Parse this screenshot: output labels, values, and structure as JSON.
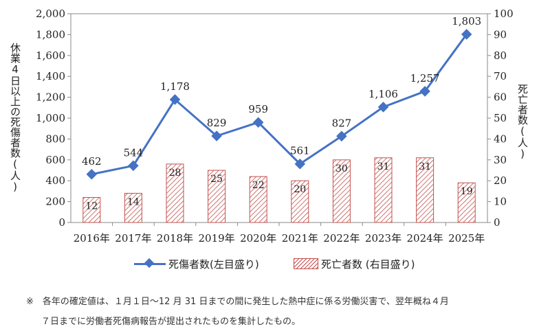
{
  "chart_data": {
    "type": "bar+line",
    "categories": [
      "2016年",
      "2017年",
      "2018年",
      "2019年",
      "2020年",
      "2021年",
      "2022年",
      "2023年",
      "2024年",
      "2025年"
    ],
    "series": [
      {
        "name": "死傷者数(左目盛り)",
        "type": "line",
        "axis": "left",
        "color": "#4472c4",
        "values": [
          462,
          544,
          1178,
          829,
          959,
          561,
          827,
          1106,
          1257,
          1803
        ],
        "labels": [
          "462",
          "544",
          "1,178",
          "829",
          "959",
          "561",
          "827",
          "1,106",
          "1,257",
          "1,803"
        ]
      },
      {
        "name": "死亡者数 (右目盛り)",
        "type": "bar",
        "axis": "right",
        "color": "#c0504d",
        "values": [
          12,
          14,
          28,
          25,
          22,
          20,
          30,
          31,
          31,
          19
        ],
        "labels": [
          "12",
          "14",
          "28",
          "25",
          "22",
          "20",
          "30",
          "31",
          "31",
          "19"
        ]
      }
    ],
    "ylabel_left": "休業4日以上の死傷者数(人)",
    "ylabel_right": "死亡者数(人)",
    "ylim_left": [
      0,
      2000
    ],
    "ylim_right": [
      0,
      100
    ],
    "yticks_left": [
      "0",
      "200",
      "400",
      "600",
      "800",
      "1,000",
      "1,200",
      "1,400",
      "1,600",
      "1,800",
      "2,000"
    ],
    "yticks_right": [
      "0",
      "10",
      "20",
      "30",
      "40",
      "50",
      "60",
      "70",
      "80",
      "90",
      "100"
    ],
    "grid": false,
    "legend_position": "bottom"
  },
  "note": {
    "line1": "※　各年の確定値は、１月１日〜12 月 31 日までの間に発生した熱中症に係る労働災害で、翌年概ね４月",
    "line2": "７日までに労働者死傷病報告が提出されたものを集計したもの。"
  }
}
